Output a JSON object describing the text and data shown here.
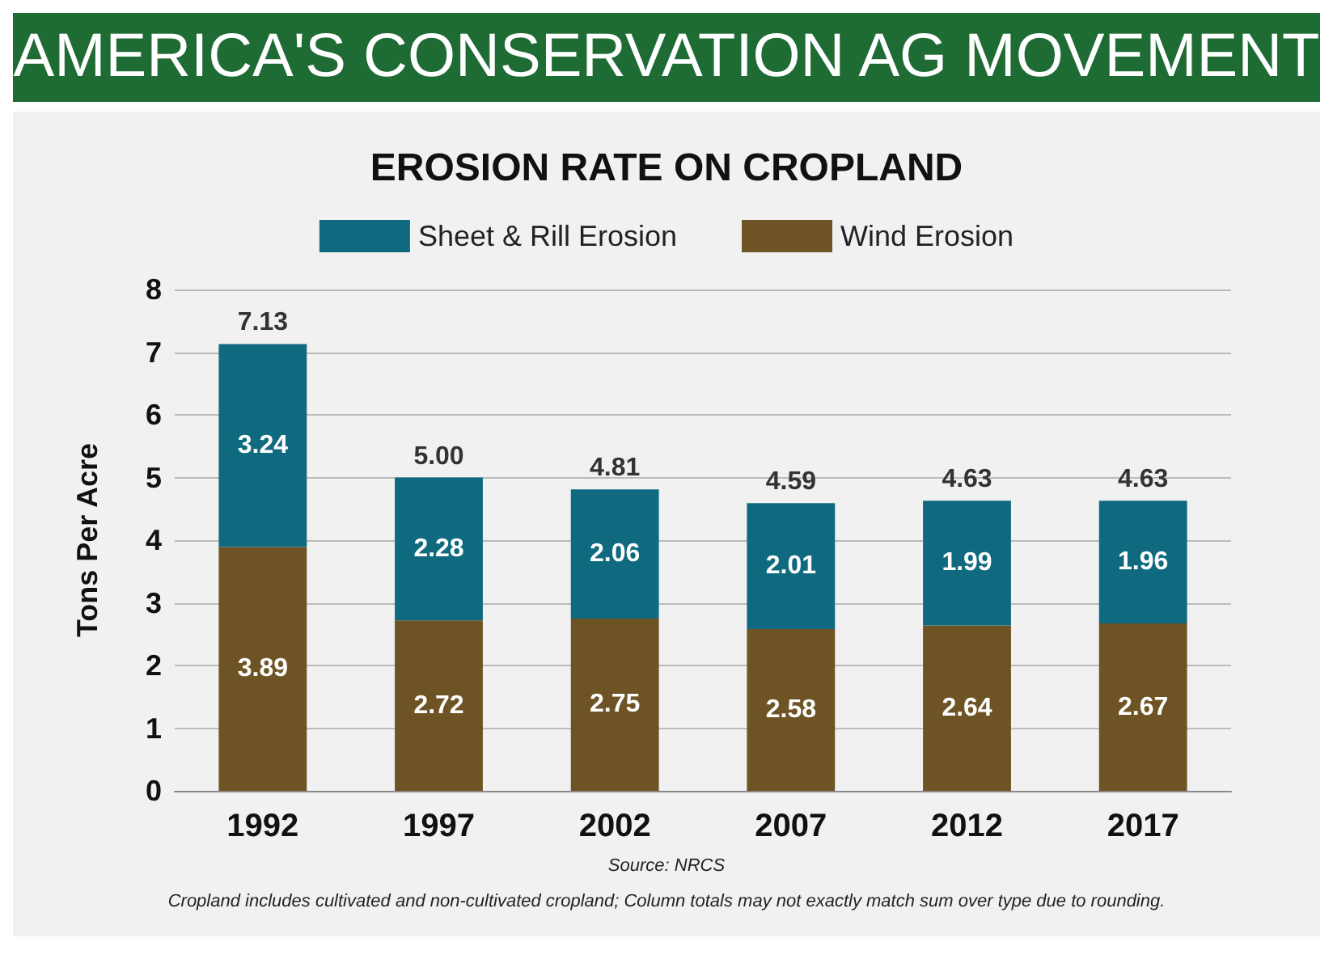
{
  "chart_data": {
    "type": "bar",
    "title": "AMERICA'S CONSERVATION AG MOVEMENT",
    "subtitle": "EROSION RATE ON CROPLAND",
    "ylabel": "Tons Per Acre",
    "categories": [
      "1992",
      "1997",
      "2002",
      "2007",
      "2012",
      "2017"
    ],
    "series": [
      {
        "name": "Wind Erosion",
        "color": "#6e5424",
        "values": [
          3.89,
          2.72,
          2.75,
          2.58,
          2.64,
          2.67
        ]
      },
      {
        "name": "Sheet & Rill Erosion",
        "color": "#0f6a80",
        "values": [
          3.24,
          2.28,
          2.06,
          2.01,
          1.99,
          1.96
        ]
      }
    ],
    "stacked": true,
    "data_labels": true,
    "totals": [
      "7.13",
      "5.00",
      "4.81",
      "4.59",
      "4.63",
      "4.63"
    ],
    "ylim": [
      0,
      8
    ],
    "yticks": [
      0,
      1,
      2,
      3,
      4,
      5,
      6,
      7,
      8
    ],
    "grid": "y",
    "legend": "top",
    "annotations": [
      "Source: NRCS",
      "Cropland includes cultivated and non-cultivated cropland; Column totals may not exactly match sum over type due to rounding."
    ]
  }
}
